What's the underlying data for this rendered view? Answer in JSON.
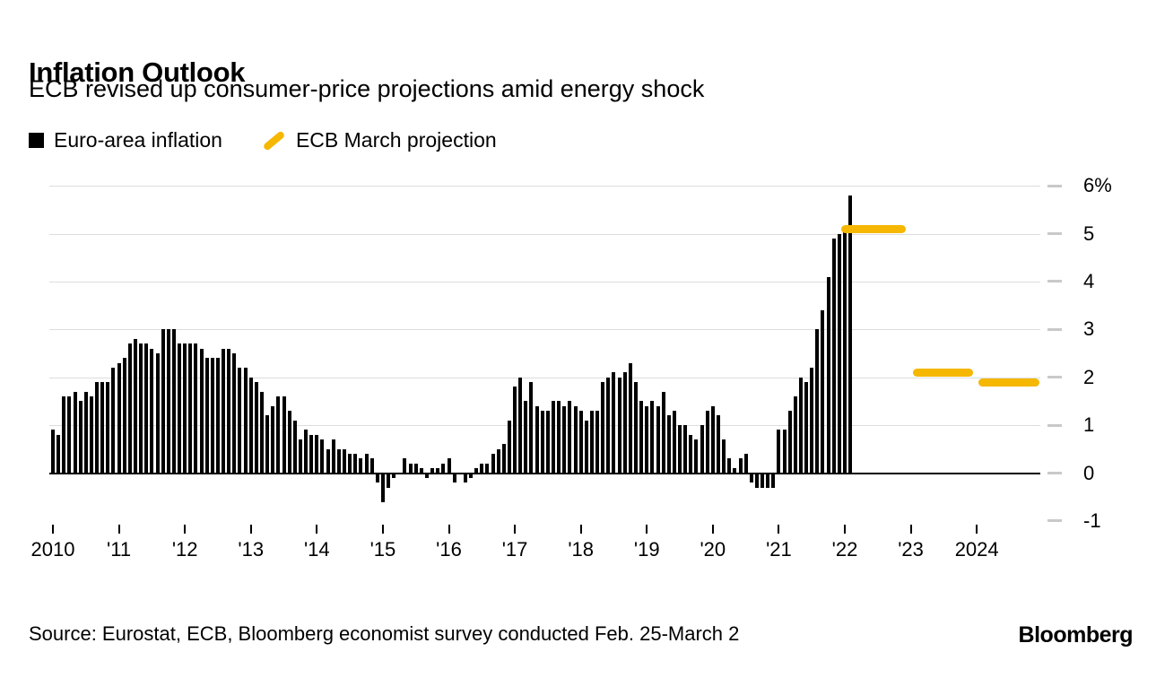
{
  "header": {
    "title": "Inflation Outlook",
    "subtitle": "ECB revised up consumer-price projections amid energy shock"
  },
  "legend": {
    "items": [
      {
        "label": "Euro-area inflation",
        "swatch": "square-icon",
        "color": "#000000"
      },
      {
        "label": "ECB March projection",
        "swatch": "slash-icon",
        "color": "#F5B700"
      }
    ]
  },
  "chart_data": {
    "type": "bar",
    "title": "Inflation Outlook",
    "unit": "percent",
    "frequency": "monthly",
    "x_start": {
      "year": 2010,
      "month": 1
    },
    "ylim": [
      -1,
      6
    ],
    "grid": "horizontal-light",
    "legend_position": "top",
    "series": [
      {
        "name": "Euro-area inflation",
        "color": "#000000",
        "values": [
          0.9,
          0.8,
          1.6,
          1.6,
          1.7,
          1.5,
          1.7,
          1.6,
          1.9,
          1.9,
          1.9,
          2.2,
          2.3,
          2.4,
          2.7,
          2.8,
          2.7,
          2.7,
          2.6,
          2.5,
          3.0,
          3.0,
          3.0,
          2.7,
          2.7,
          2.7,
          2.7,
          2.6,
          2.4,
          2.4,
          2.4,
          2.6,
          2.6,
          2.5,
          2.2,
          2.2,
          2.0,
          1.9,
          1.7,
          1.2,
          1.4,
          1.6,
          1.6,
          1.3,
          1.1,
          0.7,
          0.9,
          0.8,
          0.8,
          0.7,
          0.5,
          0.7,
          0.5,
          0.5,
          0.4,
          0.4,
          0.3,
          0.4,
          0.3,
          -0.2,
          -0.6,
          -0.3,
          -0.1,
          0.0,
          0.3,
          0.2,
          0.2,
          0.1,
          -0.1,
          0.1,
          0.1,
          0.2,
          0.3,
          -0.2,
          0.0,
          -0.2,
          -0.1,
          0.1,
          0.2,
          0.2,
          0.4,
          0.5,
          0.6,
          1.1,
          1.8,
          2.0,
          1.5,
          1.9,
          1.4,
          1.3,
          1.3,
          1.5,
          1.5,
          1.4,
          1.5,
          1.4,
          1.3,
          1.1,
          1.3,
          1.3,
          1.9,
          2.0,
          2.1,
          2.0,
          2.1,
          2.3,
          1.9,
          1.5,
          1.4,
          1.5,
          1.4,
          1.7,
          1.2,
          1.3,
          1.0,
          1.0,
          0.8,
          0.7,
          1.0,
          1.3,
          1.4,
          1.2,
          0.7,
          0.3,
          0.1,
          0.3,
          0.4,
          -0.2,
          -0.3,
          -0.3,
          -0.3,
          -0.3,
          0.9,
          0.9,
          1.3,
          1.6,
          2.0,
          1.9,
          2.2,
          3.0,
          3.4,
          4.1,
          4.9,
          5.0,
          5.1,
          5.8
        ]
      }
    ],
    "projections": [
      {
        "name": "ECB March projection",
        "period": "2022",
        "value": 5.1,
        "start_year": 2021.95,
        "end_year": 2022.93
      },
      {
        "name": "ECB March projection",
        "period": "2023",
        "value": 2.1,
        "start_year": 2023.03,
        "end_year": 2023.95
      },
      {
        "name": "ECB March projection",
        "period": "2024",
        "value": 1.9,
        "start_year": 2024.03,
        "end_year": 2024.95
      }
    ],
    "y_ticks": [
      {
        "value": 6,
        "label": "6%"
      },
      {
        "value": 5,
        "label": "5"
      },
      {
        "value": 4,
        "label": "4"
      },
      {
        "value": 3,
        "label": "3"
      },
      {
        "value": 2,
        "label": "2"
      },
      {
        "value": 1,
        "label": "1"
      },
      {
        "value": 0,
        "label": "0"
      },
      {
        "value": -1,
        "label": "-1"
      }
    ],
    "x_ticks": [
      {
        "year": 2010,
        "label": "2010"
      },
      {
        "year": 2011,
        "label": "'11"
      },
      {
        "year": 2012,
        "label": "'12"
      },
      {
        "year": 2013,
        "label": "'13"
      },
      {
        "year": 2014,
        "label": "'14"
      },
      {
        "year": 2015,
        "label": "'15"
      },
      {
        "year": 2016,
        "label": "'16"
      },
      {
        "year": 2017,
        "label": "'17"
      },
      {
        "year": 2018,
        "label": "'18"
      },
      {
        "year": 2019,
        "label": "'19"
      },
      {
        "year": 2020,
        "label": "'20"
      },
      {
        "year": 2021,
        "label": "'21"
      },
      {
        "year": 2022,
        "label": "'22"
      },
      {
        "year": 2023,
        "label": "'23"
      },
      {
        "year": 2024,
        "label": "2024"
      }
    ]
  },
  "colors": {
    "bar": "#000000",
    "projection": "#F5B700",
    "grid": "#DDDDDD",
    "tick_dash": "#C9C9C9",
    "axis": "#000000"
  },
  "footer": {
    "source": "Source: Eurostat, ECB, Bloomberg economist survey conducted Feb. 25-March 2",
    "logo": "Bloomberg"
  }
}
